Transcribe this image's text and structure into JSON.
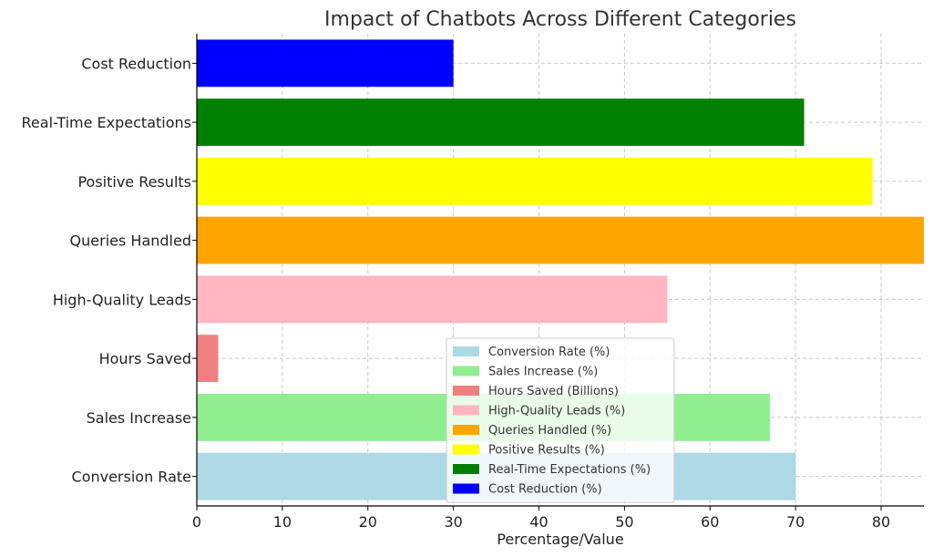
{
  "chart_data": {
    "type": "bar",
    "orientation": "horizontal",
    "title": "Impact of Chatbots Across Different Categories",
    "xlabel": "Percentage/Value",
    "ylabel": "",
    "xlim": [
      0,
      85
    ],
    "xticks": [
      0,
      10,
      20,
      30,
      40,
      50,
      60,
      70,
      80
    ],
    "grid": true,
    "legend_position": "lower-center",
    "categories": [
      "Conversion Rate",
      "Sales Increase",
      "Hours Saved",
      "High-Quality Leads",
      "Queries Handled",
      "Positive Results",
      "Real-Time Expectations",
      "Cost Reduction"
    ],
    "values": [
      70,
      67,
      2.5,
      55,
      85,
      79,
      71,
      30
    ],
    "colors": [
      "#add8e6",
      "#90ee90",
      "#f08080",
      "#ffb6c1",
      "#ffa500",
      "#ffff00",
      "#008000",
      "#0000ff"
    ],
    "legend": [
      "Conversion Rate (%)",
      "Sales Increase (%)",
      "Hours Saved (Billions)",
      "High-Quality Leads (%)",
      "Queries Handled (%)",
      "Positive Results (%)",
      "Real-Time Expectations (%)",
      "Cost Reduction (%)"
    ]
  }
}
